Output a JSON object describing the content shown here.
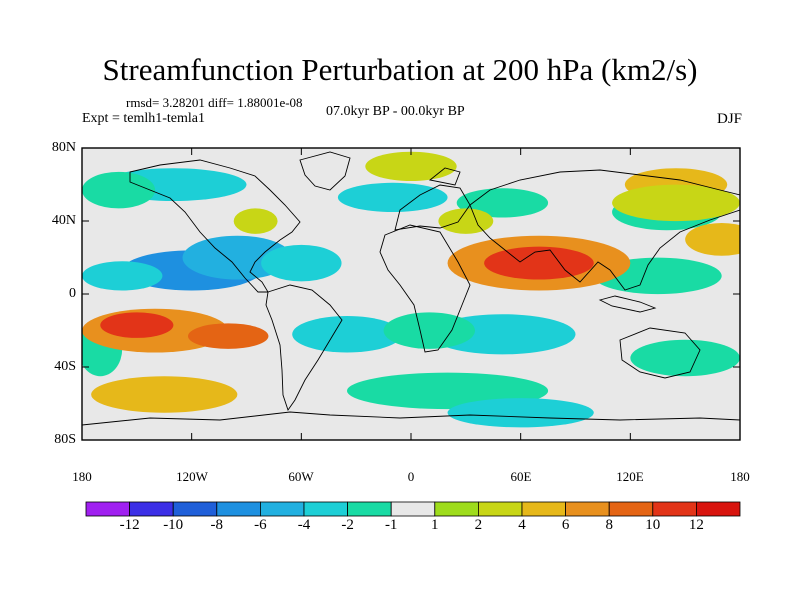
{
  "title": "Streamfunction Perturbation at 200 hPa (km2/s)",
  "stats": "rmsd= 3.28201 diff= 1.88001e-08",
  "experiment": "Expt = temlh1-temla1",
  "period": "07.0kyr BP - 00.0kyr BP",
  "season": "DJF",
  "lat_labels": [
    "80N",
    "40N",
    "0",
    "40S",
    "80S"
  ],
  "lon_labels": [
    "180",
    "120W",
    "60W",
    "0",
    "60E",
    "120E",
    "180"
  ],
  "colorbar": {
    "labels": [
      "-12",
      "-10",
      "-8",
      "-6",
      "-4",
      "-2",
      "-1",
      "1",
      "2",
      "4",
      "6",
      "8",
      "10",
      "12"
    ],
    "colors": [
      "#a020f0",
      "#3c2fe6",
      "#1f5fd9",
      "#1e90e0",
      "#22b0e0",
      "#1dcfd6",
      "#19dba4",
      "#e8e8e8",
      "#9edc1c",
      "#c8d616",
      "#e6b81a",
      "#e8901e",
      "#e46414",
      "#e23418",
      "#d8140e"
    ]
  },
  "field_blobs": [
    {
      "lon": -120,
      "lat": 18,
      "rlon": 38,
      "rlat": 11,
      "level": "-8"
    },
    {
      "lon": -95,
      "lat": 25,
      "rlon": 30,
      "rlat": 12,
      "level": "-6"
    },
    {
      "lon": -60,
      "lat": 22,
      "rlon": 22,
      "rlat": 10,
      "level": "-4"
    },
    {
      "lon": -158,
      "lat": 15,
      "rlon": 22,
      "rlat": 8,
      "level": "-4"
    },
    {
      "lon": -130,
      "lat": 65,
      "rlon": 40,
      "rlat": 9,
      "level": "-4"
    },
    {
      "lon": -160,
      "lat": 62,
      "rlon": 20,
      "rlat": 10,
      "level": "-2"
    },
    {
      "lon": -10,
      "lat": 58,
      "rlon": 30,
      "rlat": 8,
      "level": "-4"
    },
    {
      "lon": 50,
      "lat": 55,
      "rlon": 25,
      "rlat": 8,
      "level": "-2"
    },
    {
      "lon": 140,
      "lat": 50,
      "rlon": 30,
      "rlat": 10,
      "level": "-2"
    },
    {
      "lon": 135,
      "lat": 15,
      "rlon": 35,
      "rlat": 10,
      "level": "-2"
    },
    {
      "lon": -35,
      "lat": -17,
      "rlon": 30,
      "rlat": 10,
      "level": "-4"
    },
    {
      "lon": 50,
      "lat": -17,
      "rlon": 40,
      "rlat": 11,
      "level": "-4"
    },
    {
      "lon": 10,
      "lat": -15,
      "rlon": 25,
      "rlat": 10,
      "level": "-2"
    },
    {
      "lon": 20,
      "lat": -48,
      "rlon": 55,
      "rlat": 10,
      "level": "-2"
    },
    {
      "lon": 60,
      "lat": -60,
      "rlon": 40,
      "rlat": 8,
      "level": "-4"
    },
    {
      "lon": 150,
      "lat": -30,
      "rlon": 30,
      "rlat": 10,
      "level": "-2"
    },
    {
      "lon": -170,
      "lat": -25,
      "rlon": 12,
      "rlat": 15,
      "level": "-2"
    },
    {
      "lon": -140,
      "lat": -15,
      "rlon": 40,
      "rlat": 12,
      "level": "6"
    },
    {
      "lon": -150,
      "lat": -12,
      "rlon": 20,
      "rlat": 7,
      "level": "10"
    },
    {
      "lon": -100,
      "lat": -18,
      "rlon": 22,
      "rlat": 7,
      "level": "8"
    },
    {
      "lon": -135,
      "lat": -50,
      "rlon": 40,
      "rlat": 10,
      "level": "4"
    },
    {
      "lon": 70,
      "lat": 22,
      "rlon": 50,
      "rlat": 15,
      "level": "6"
    },
    {
      "lon": 70,
      "lat": 22,
      "rlon": 30,
      "rlat": 9,
      "level": "10"
    },
    {
      "lon": 0,
      "lat": 75,
      "rlon": 25,
      "rlat": 8,
      "level": "2"
    },
    {
      "lon": 145,
      "lat": 65,
      "rlon": 28,
      "rlat": 9,
      "level": "4"
    },
    {
      "lon": 170,
      "lat": 35,
      "rlon": 20,
      "rlat": 9,
      "level": "4"
    },
    {
      "lon": -85,
      "lat": 45,
      "rlon": 12,
      "rlat": 7,
      "level": "2"
    },
    {
      "lon": 30,
      "lat": 45,
      "rlon": 15,
      "rlat": 7,
      "level": "2"
    },
    {
      "lon": 145,
      "lat": 55,
      "rlon": 35,
      "rlat": 10,
      "level": "2"
    }
  ]
}
